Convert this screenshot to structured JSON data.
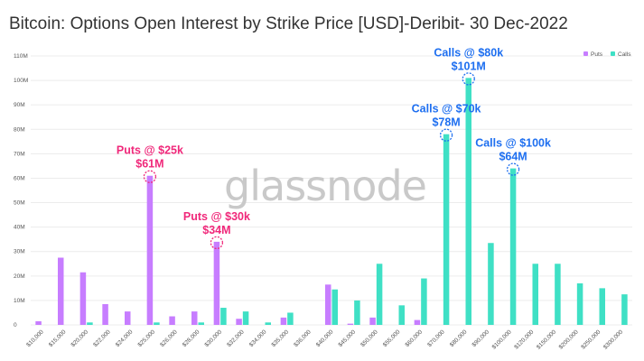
{
  "chart_data": {
    "type": "bar",
    "title": "Bitcoin: Options Open Interest by Strike Price [USD]-Deribit- 30 Dec-2022",
    "watermark": "glassnode",
    "xlabel": "",
    "ylabel": "",
    "ylim": [
      0,
      110
    ],
    "y_unit": "M",
    "yticks": [
      "0",
      "10M",
      "20M",
      "30M",
      "40M",
      "50M",
      "60M",
      "70M",
      "80M",
      "90M",
      "100M",
      "110M"
    ],
    "grid": true,
    "legend_position": "top-right",
    "categories": [
      "$10,000",
      "$15,000",
      "$20,000",
      "$22,000",
      "$24,000",
      "$25,000",
      "$26,000",
      "$28,000",
      "$30,000",
      "$32,000",
      "$34,000",
      "$35,000",
      "$36,000",
      "$40,000",
      "$45,000",
      "$50,000",
      "$55,000",
      "$60,000",
      "$70,000",
      "$80,000",
      "$90,000",
      "$100,000",
      "$120,000",
      "$150,000",
      "$200,000",
      "$250,000",
      "$300,000"
    ],
    "series": [
      {
        "name": "Puts",
        "color": "#c77dff",
        "values": [
          1.5,
          27.5,
          21.5,
          8.5,
          5.5,
          61,
          3.5,
          5.5,
          34,
          2.5,
          0,
          3,
          0,
          16.5,
          0.5,
          3,
          0,
          2,
          0,
          0,
          0,
          0,
          0,
          0,
          0,
          0,
          0
        ]
      },
      {
        "name": "Calls",
        "color": "#3fe0c5",
        "values": [
          0,
          0,
          1,
          0,
          0,
          1,
          0,
          1,
          7,
          5.5,
          1,
          5,
          0,
          14.5,
          10,
          25,
          8,
          19,
          78,
          101,
          33.5,
          64,
          25,
          25,
          17,
          15,
          12.5
        ]
      }
    ],
    "annotations": [
      {
        "line1": "Puts @ $25k",
        "line2": "$61M",
        "series": "Puts",
        "category": "$25,000",
        "value": 61,
        "color": "#f0287a"
      },
      {
        "line1": "Puts @ $30k",
        "line2": "$34M",
        "series": "Puts",
        "category": "$30,000",
        "value": 34,
        "color": "#f0287a"
      },
      {
        "line1": "Calls @ $70k",
        "line2": "$78M",
        "series": "Calls",
        "category": "$70,000",
        "value": 78,
        "color": "#1e6ff0"
      },
      {
        "line1": "Calls @ $80k",
        "line2": "$101M",
        "series": "Calls",
        "category": "$80,000",
        "value": 101,
        "color": "#1e6ff0"
      },
      {
        "line1": "Calls @ $100k",
        "line2": "$64M",
        "series": "Calls",
        "category": "$100,000",
        "value": 64,
        "color": "#1e6ff0"
      }
    ]
  }
}
